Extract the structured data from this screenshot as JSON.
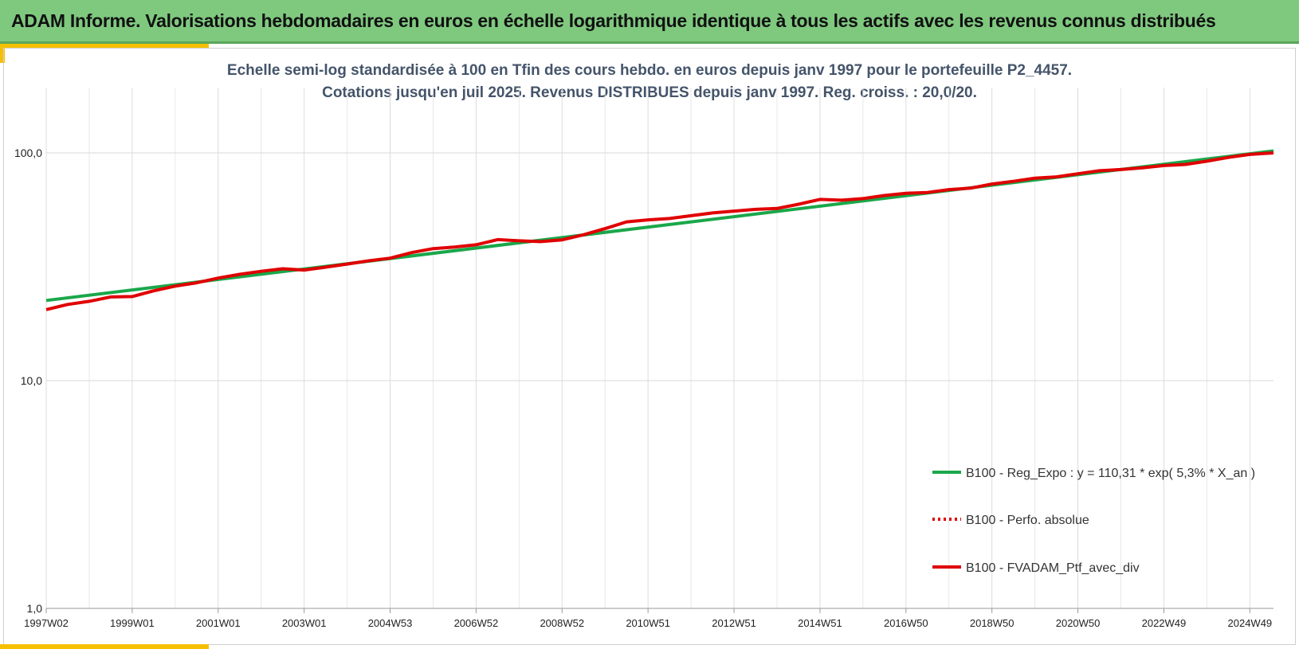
{
  "header": {
    "title": "ADAM Informe. Valorisations hebdomadaires en euros en échelle logarithmique identique à tous les actifs avec les revenus connus distribués"
  },
  "colors": {
    "header_bg": "#7fc97f",
    "accent": "#f5c000",
    "regression": "#1aa74a",
    "portfolio": "#e00000",
    "subtitle": "#44546a"
  },
  "chart_data": {
    "type": "line",
    "title_line1": "Echelle semi-log standardisée  à 100 en Tfin des cours hebdo.  en euros depuis janv 1997 pour  le portefeuille P2_4457.",
    "title_line2": "Cotations  jusqu'en juil 2025. Revenus DISTRIBUES depuis janv 1997. Reg. croiss. : 20,0/20.",
    "y_scale": "log",
    "ylim": [
      1,
      200
    ],
    "y_ticks": [
      1,
      10,
      100
    ],
    "y_tick_labels": [
      "1,0",
      "10,0",
      "100,0"
    ],
    "x_tick_labels": [
      "1997W02",
      "1999W01",
      "2001W01",
      "2003W01",
      "2004W53",
      "2006W52",
      "2008W52",
      "2010W51",
      "2012W51",
      "2014W51",
      "2016W50",
      "2018W50",
      "2020W50",
      "2022W49",
      "2024W49"
    ],
    "x_tick_years": [
      1997.0,
      1999.0,
      2001.0,
      2003.0,
      2005.0,
      2007.0,
      2009.0,
      2011.0,
      2013.0,
      2015.0,
      2017.0,
      2019.0,
      2021.0,
      2023.0,
      2025.0
    ],
    "xlim": [
      1997.0,
      2025.55
    ],
    "grid": "vertical",
    "legend_position": "bottom-right",
    "series": [
      {
        "name": "B100 - Reg_Expo : y = 110,31 * exp( 5,3% *  X_an )",
        "style": "solid",
        "x": [
          1997.0,
          2025.55
        ],
        "y": [
          22.5,
          102.0
        ]
      },
      {
        "name": "B100 - Perfo. absolue",
        "style": "dotted",
        "x": [],
        "y": []
      },
      {
        "name": "B100 - FVADAM_Ptf_avec_div",
        "style": "solid",
        "x": [
          1997.0,
          1997.5,
          1998.0,
          1998.5,
          1999.0,
          1999.5,
          2000.0,
          2000.5,
          2001.0,
          2001.5,
          2002.0,
          2002.5,
          2003.0,
          2003.5,
          2004.0,
          2004.5,
          2005.0,
          2005.5,
          2006.0,
          2006.5,
          2007.0,
          2007.5,
          2008.0,
          2008.5,
          2009.0,
          2009.5,
          2010.0,
          2010.5,
          2011.0,
          2011.5,
          2012.0,
          2012.5,
          2013.0,
          2013.5,
          2014.0,
          2014.5,
          2015.0,
          2015.5,
          2016.0,
          2016.5,
          2017.0,
          2017.5,
          2018.0,
          2018.5,
          2019.0,
          2019.5,
          2020.0,
          2020.5,
          2021.0,
          2021.5,
          2022.0,
          2022.5,
          2023.0,
          2023.5,
          2024.0,
          2024.5,
          2025.0,
          2025.55
        ],
        "y": [
          20.5,
          21.6,
          22.3,
          23.3,
          23.4,
          24.8,
          26.0,
          26.9,
          28.2,
          29.3,
          30.2,
          31.0,
          30.6,
          31.5,
          32.5,
          33.6,
          34.5,
          36.5,
          38.0,
          38.6,
          39.5,
          41.6,
          41.1,
          40.8,
          41.5,
          43.7,
          46.5,
          49.8,
          50.8,
          51.5,
          53.0,
          54.5,
          55.5,
          56.5,
          57.0,
          59.5,
          62.5,
          62.0,
          63.0,
          65.0,
          66.5,
          67.0,
          69.0,
          70.0,
          73.0,
          75.0,
          77.5,
          78.5,
          81.0,
          83.5,
          84.5,
          86.0,
          88.0,
          89.0,
          92.0,
          95.5,
          98.5,
          100.0
        ]
      }
    ]
  }
}
